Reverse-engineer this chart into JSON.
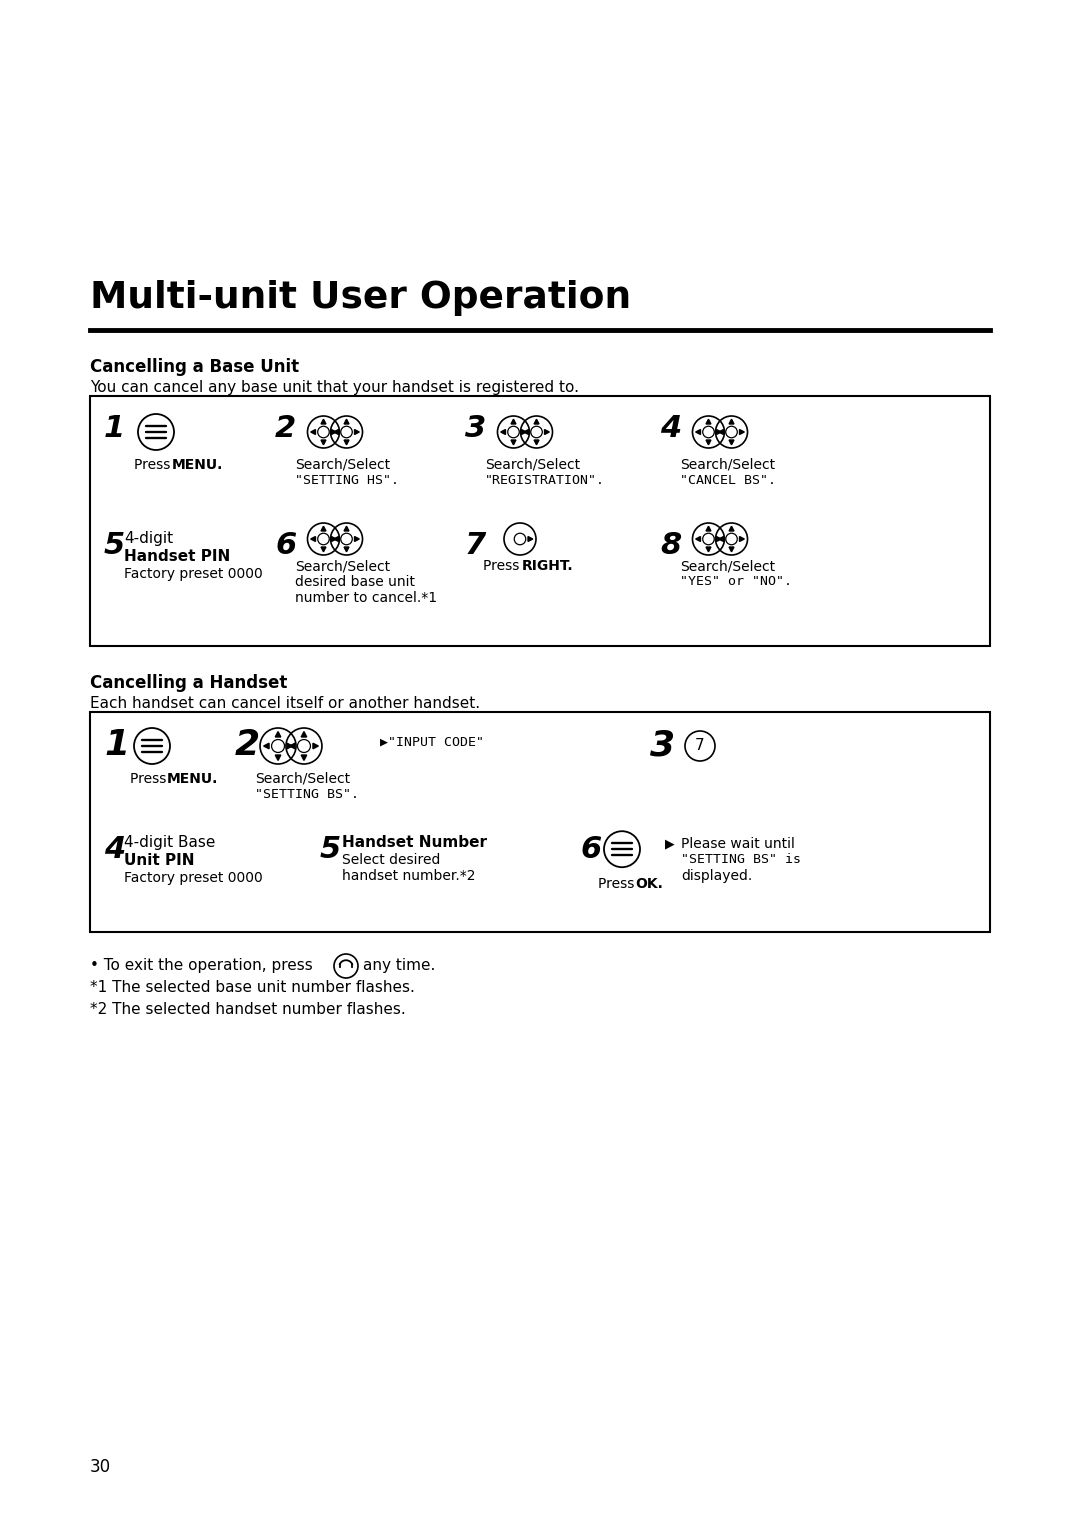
{
  "title": "Multi-unit User Operation",
  "bg_color": "#ffffff",
  "text_color": "#000000",
  "section1_heading": "Cancelling a Base Unit",
  "section1_desc": "You can cancel any base unit that your handset is registered to.",
  "section2_heading": "Cancelling a Handset",
  "section2_desc": "Each handset can cancel itself or another handset.",
  "fn1_pre": "• To exit the operation, press",
  "fn1_post": "any time.",
  "fn2": "*1 The selected base unit number flashes.",
  "fn3": "*2 The selected handset number flashes.",
  "page_number": "30",
  "fig_width": 10.8,
  "fig_height": 15.28,
  "dpi": 100
}
